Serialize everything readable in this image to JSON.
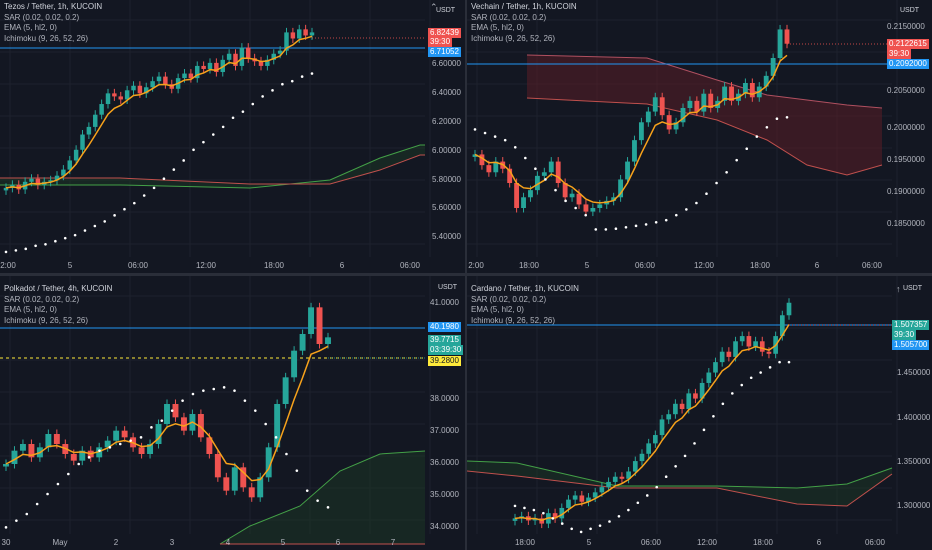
{
  "panes": [
    {
      "id": "tezos",
      "title": "Tezos / Tether, 1h, KUCOIN",
      "indicators": [
        "SAR (0.02, 0.02, 0.2)",
        "EMA (5, hl2, 0)",
        "Ichimoku (9, 26, 52, 26)"
      ],
      "currency": "USDT",
      "y_ticks": [
        "6.60000",
        "6.40000",
        "6.20000",
        "6.00000",
        "5.80000",
        "5.60000",
        "5.40000"
      ],
      "x_ticks": [
        "2:00",
        "5",
        "06:00",
        "12:00",
        "18:00",
        "6",
        "06:00"
      ],
      "price_tags": [
        {
          "text": "6.82439",
          "color": "#ef5350"
        },
        {
          "text": "39:30",
          "color": "#ef5350"
        },
        {
          "text": "6.71052",
          "color": "#2196f3"
        }
      ]
    },
    {
      "id": "vechain",
      "title": "Vechain / Tether, 1h, KUCOIN",
      "indicators": [
        "SAR (0.02, 0.02, 0.2)",
        "EMA (5, hl2, 0)",
        "Ichimoku (9, 26, 52, 26)"
      ],
      "currency": "USDT",
      "y_ticks": [
        "0.2150000",
        "0.2050000",
        "0.2000000",
        "0.1950000",
        "0.1900000",
        "0.1850000"
      ],
      "x_ticks": [
        "2:00",
        "18:00",
        "5",
        "06:00",
        "12:00",
        "18:00",
        "6",
        "06:00"
      ],
      "price_tags": [
        {
          "text": "0.2122615",
          "color": "#ef5350"
        },
        {
          "text": "39:30",
          "color": "#ef5350"
        },
        {
          "text": "0.2092000",
          "color": "#2196f3"
        }
      ]
    },
    {
      "id": "polkadot",
      "title": "Polkadot / Tether, 4h, KUCOIN",
      "indicators": [
        "SAR (0.02, 0.02, 0.2)",
        "EMA (5, hl2, 0)",
        "Ichimoku (9, 26, 52, 26)"
      ],
      "currency": "USDT",
      "y_ticks": [
        "41.0000",
        "38.0000",
        "37.0000",
        "36.0000",
        "35.0000",
        "34.0000"
      ],
      "x_ticks": [
        "30",
        "May",
        "2",
        "3",
        "4",
        "5",
        "6",
        "7"
      ],
      "price_tags": [
        {
          "text": "40.1980",
          "color": "#2196f3"
        },
        {
          "text": "39.7715",
          "color": "#26a69a"
        },
        {
          "text": "03:39:30",
          "color": "#26a69a"
        },
        {
          "text": "39.2800",
          "color": "#ffeb3b"
        }
      ]
    },
    {
      "id": "cardano",
      "title": "Cardano / Tether, 1h, KUCOIN",
      "indicators": [
        "SAR (0.02, 0.02, 0.2)",
        "EMA (5, hl2, 0)",
        "Ichimoku (9, 26, 52, 26)"
      ],
      "currency": "USDT",
      "y_ticks": [
        "1.450000",
        "1.400000",
        "1.350000",
        "1.300000"
      ],
      "x_ticks": [
        "18:00",
        "5",
        "06:00",
        "12:00",
        "18:00",
        "6",
        "06:00"
      ],
      "price_tags": [
        {
          "text": "1.507357",
          "color": "#26a69a"
        },
        {
          "text": "39:30",
          "color": "#26a69a"
        },
        {
          "text": "1.505700",
          "color": "#2196f3"
        }
      ]
    }
  ],
  "colors": {
    "background": "#131722",
    "up": "#26a69a",
    "down": "#ef5350",
    "ema": "#f7a21b",
    "sar": "#ffffff",
    "cloud_bull": "#2e7d32",
    "cloud_bear": "#7a1f2a"
  },
  "chart_data": [
    {
      "type": "candlestick",
      "pane": "tezos",
      "ylim": [
        5.34,
        6.98
      ],
      "series": [
        {
          "name": "price",
          "close": [
            5.8,
            5.82,
            5.79,
            5.84,
            5.86,
            5.82,
            5.84,
            5.85,
            5.88,
            5.92,
            5.98,
            6.05,
            6.15,
            6.2,
            6.28,
            6.35,
            6.42,
            6.4,
            6.38,
            6.44,
            6.47,
            6.42,
            6.46,
            6.5,
            6.53,
            6.48,
            6.45,
            6.52,
            6.55,
            6.52,
            6.6,
            6.58,
            6.62,
            6.56,
            6.64,
            6.68,
            6.6,
            6.72,
            6.65,
            6.63,
            6.6,
            6.64,
            6.68,
            6.7,
            6.82,
            6.78,
            6.84,
            6.8,
            6.82
          ]
        },
        {
          "name": "sar",
          "values": [
            5.38,
            5.39,
            5.4,
            5.42,
            5.43,
            5.45,
            5.47,
            5.49,
            5.52,
            5.55,
            5.58,
            5.62,
            5.66,
            5.7,
            5.75,
            5.8,
            5.86,
            5.92,
            5.98,
            6.05,
            6.1,
            6.15,
            6.2,
            6.26,
            6.3,
            6.35,
            6.4,
            6.44,
            6.48,
            6.5,
            6.53,
            6.55
          ]
        }
      ]
    },
    {
      "type": "candlestick",
      "pane": "vechain",
      "ylim": [
        0.1825,
        0.2175
      ],
      "series": [
        {
          "name": "price",
          "close": [
            0.197,
            0.1955,
            0.1945,
            0.196,
            0.195,
            0.193,
            0.1895,
            0.191,
            0.192,
            0.194,
            0.1945,
            0.196,
            0.193,
            0.191,
            0.1915,
            0.19,
            0.189,
            0.1895,
            0.19,
            0.1905,
            0.191,
            0.1935,
            0.196,
            0.199,
            0.2015,
            0.203,
            0.205,
            0.2025,
            0.2005,
            0.2015,
            0.2035,
            0.2045,
            0.203,
            0.2055,
            0.2035,
            0.2045,
            0.2065,
            0.2045,
            0.2055,
            0.207,
            0.205,
            0.2065,
            0.208,
            0.2105,
            0.2145,
            0.2125
          ]
        },
        {
          "name": "sar",
          "values": [
            0.2005,
            0.2,
            0.1995,
            0.199,
            0.198,
            0.1965,
            0.195,
            0.1935,
            0.192,
            0.1905,
            0.1895,
            0.1885,
            0.1865,
            0.1865,
            0.1866,
            0.1868,
            0.187,
            0.1872,
            0.1875,
            0.1878,
            0.1885,
            0.1893,
            0.1902,
            0.1915,
            0.193,
            0.1945,
            0.1962,
            0.1978,
            0.1995,
            0.2008,
            0.202,
            0.2022
          ]
        }
      ]
    },
    {
      "type": "candlestick",
      "pane": "polkadot",
      "ylim": [
        33.9,
        41.4
      ],
      "series": [
        {
          "name": "price",
          "close": [
            36,
            36.4,
            36.6,
            36.2,
            36.5,
            36.9,
            36.6,
            36.3,
            36.1,
            36.4,
            36.2,
            36.5,
            36.7,
            37,
            36.8,
            36.5,
            36.3,
            36.6,
            37.2,
            37.8,
            37.4,
            37,
            37.5,
            36.8,
            36.3,
            35.6,
            35.2,
            35.9,
            35.3,
            35,
            35.6,
            36.5,
            37.8,
            38.6,
            39.4,
            39.9,
            40.7,
            39.6,
            39.8
          ]
        },
        {
          "name": "sar",
          "values": [
            34.1,
            34.3,
            34.5,
            34.8,
            35.1,
            35.4,
            35.7,
            36,
            36.2,
            36.4,
            36.5,
            36.6,
            36.7,
            36.8,
            37.1,
            37.3,
            37.6,
            37.9,
            38.1,
            38.2,
            38.25,
            38.3,
            38.2,
            37.9,
            37.6,
            37.2,
            36.8,
            36.3,
            35.8,
            35.2,
            34.9,
            34.7
          ]
        }
      ]
    },
    {
      "type": "candlestick",
      "pane": "cardano",
      "ylim": [
        1.285,
        1.525
      ],
      "series": [
        {
          "name": "price",
          "close": [
            1.3,
            1.302,
            1.298,
            1.3,
            1.295,
            1.305,
            1.3,
            1.31,
            1.318,
            1.322,
            1.316,
            1.32,
            1.325,
            1.33,
            1.335,
            1.34,
            1.338,
            1.345,
            1.355,
            1.362,
            1.372,
            1.38,
            1.395,
            1.4,
            1.41,
            1.405,
            1.42,
            1.415,
            1.43,
            1.44,
            1.45,
            1.46,
            1.455,
            1.47,
            1.475,
            1.465,
            1.47,
            1.46,
            1.458,
            1.475,
            1.495,
            1.507
          ]
        },
        {
          "name": "sar",
          "values": [
            1.312,
            1.31,
            1.308,
            1.305,
            1.3,
            1.295,
            1.29,
            1.287,
            1.29,
            1.293,
            1.297,
            1.302,
            1.308,
            1.315,
            1.322,
            1.33,
            1.34,
            1.35,
            1.36,
            1.372,
            1.385,
            1.398,
            1.41,
            1.42,
            1.428,
            1.435,
            1.44,
            1.445,
            1.45,
            1.45
          ]
        }
      ]
    }
  ]
}
